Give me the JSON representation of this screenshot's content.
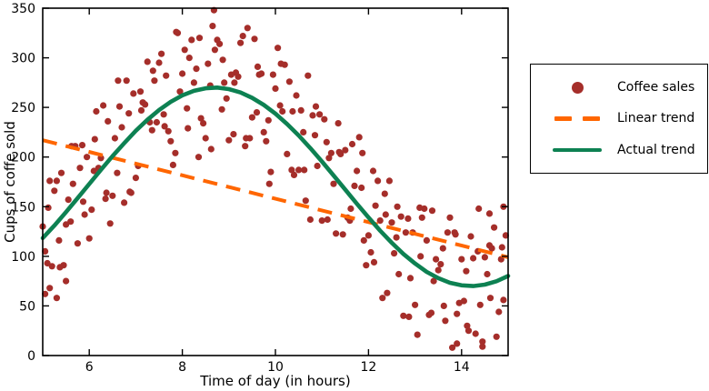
{
  "figure": {
    "background": "#ffffff"
  },
  "chart_data": {
    "type": "scatter",
    "title": "",
    "xlabel": "Time of day (in hours)",
    "ylabel": "Cups of coffe sold",
    "xlim": [
      5,
      15
    ],
    "ylim": [
      0,
      350
    ],
    "x_ticks": [
      "6",
      "8",
      "10",
      "12",
      "14"
    ],
    "y_ticks": [
      "0",
      "50",
      "100",
      "150",
      "200",
      "250",
      "300",
      "350"
    ],
    "grid": false,
    "tick_style": "inward-all-four-sides",
    "legend": {
      "position": "outside-right",
      "entries": [
        {
          "label": "Coffee sales",
          "type": "marker",
          "color": "#a52e2a"
        },
        {
          "label": "Linear trend",
          "type": "dashed-line",
          "color": "#ff6600"
        },
        {
          "label": "Actual trend",
          "type": "solid-line",
          "color": "#0d8152"
        }
      ]
    },
    "series": [
      {
        "name": "Coffee sales",
        "type": "scatter",
        "color": "#a52e2a",
        "points": [
          [
            5.0,
            130
          ],
          [
            5.2,
            90
          ],
          [
            5.4,
            184
          ],
          [
            5.6,
            135
          ],
          [
            5.8,
            189
          ],
          [
            6.0,
            118
          ],
          [
            6.2,
            189
          ],
          [
            6.4,
            236
          ],
          [
            6.6,
            184
          ],
          [
            6.8,
            277
          ],
          [
            7.0,
            179
          ],
          [
            7.2,
            253
          ],
          [
            7.4,
            277
          ],
          [
            7.6,
            243
          ],
          [
            7.8,
            192
          ],
          [
            8.0,
            284
          ],
          [
            8.2,
            318
          ],
          [
            8.4,
            239
          ],
          [
            8.6,
            272
          ],
          [
            8.8,
            314
          ],
          [
            9.0,
            217
          ],
          [
            9.2,
            281
          ],
          [
            9.4,
            330
          ],
          [
            9.6,
            245
          ],
          [
            9.8,
            216
          ],
          [
            10.0,
            269
          ],
          [
            10.2,
            293
          ],
          [
            10.4,
            182
          ],
          [
            10.6,
            225
          ],
          [
            10.8,
            242
          ],
          [
            11.0,
            136
          ],
          [
            11.2,
            204
          ],
          [
            11.4,
            203
          ],
          [
            11.6,
            136
          ],
          [
            11.8,
            220
          ],
          [
            12.0,
            121
          ],
          [
            12.2,
            176
          ],
          [
            12.4,
            63
          ],
          [
            12.6,
            119
          ],
          [
            12.8,
            124
          ],
          [
            13.0,
            51
          ],
          [
            13.2,
            148
          ],
          [
            13.4,
            75
          ],
          [
            13.6,
            108
          ],
          [
            13.8,
            8
          ],
          [
            14.0,
            97
          ],
          [
            14.2,
            120
          ],
          [
            14.4,
            51
          ],
          [
            14.6,
            111
          ],
          [
            14.8,
            44
          ],
          [
            5.1,
            93
          ],
          [
            5.3,
            176
          ],
          [
            5.5,
            132
          ],
          [
            5.7,
            211
          ],
          [
            5.9,
            142
          ],
          [
            6.1,
            186
          ],
          [
            6.3,
            252
          ],
          [
            6.5,
            161
          ],
          [
            6.7,
            230
          ],
          [
            6.9,
            164
          ],
          [
            7.1,
            266
          ],
          [
            7.3,
            235
          ],
          [
            7.5,
            295
          ],
          [
            7.7,
            226
          ],
          [
            7.9,
            325
          ],
          [
            8.1,
            249
          ],
          [
            8.3,
            289
          ],
          [
            8.5,
            219
          ],
          [
            8.7,
            308
          ],
          [
            8.9,
            275
          ],
          [
            9.1,
            223
          ],
          [
            9.3,
            322
          ],
          [
            9.5,
            240
          ],
          [
            9.7,
            284
          ],
          [
            9.9,
            185
          ],
          [
            10.1,
            252
          ],
          [
            10.3,
            276
          ],
          [
            10.5,
            187
          ],
          [
            10.7,
            282
          ],
          [
            10.9,
            191
          ],
          [
            11.1,
            215
          ],
          [
            11.3,
            123
          ],
          [
            11.5,
            207
          ],
          [
            11.7,
            171
          ],
          [
            11.9,
            116
          ],
          [
            12.1,
            186
          ],
          [
            12.3,
            58
          ],
          [
            12.5,
            134
          ],
          [
            12.7,
            140
          ],
          [
            12.9,
            78
          ],
          [
            13.1,
            149
          ],
          [
            13.3,
            41
          ],
          [
            13.5,
            86
          ],
          [
            13.7,
            124
          ],
          [
            13.9,
            42
          ],
          [
            14.1,
            85
          ],
          [
            14.3,
            22
          ],
          [
            14.5,
            99
          ],
          [
            14.7,
            129
          ],
          [
            14.9,
            56
          ],
          [
            5.15,
            176
          ],
          [
            5.35,
            116
          ],
          [
            5.55,
            157
          ],
          [
            5.75,
            113
          ],
          [
            5.95,
            200
          ],
          [
            6.15,
            246
          ],
          [
            6.35,
            158
          ],
          [
            6.55,
            219
          ],
          [
            6.75,
            154
          ],
          [
            6.95,
            264
          ],
          [
            7.15,
            255
          ],
          [
            7.35,
            227
          ],
          [
            7.55,
            304
          ],
          [
            7.75,
            216
          ],
          [
            7.95,
            266
          ],
          [
            8.15,
            300
          ],
          [
            8.35,
            200
          ],
          [
            8.55,
            294
          ],
          [
            8.75,
            318
          ],
          [
            8.95,
            259
          ],
          [
            9.15,
            285
          ],
          [
            9.35,
            211
          ],
          [
            9.55,
            319
          ],
          [
            9.75,
            225
          ],
          [
            9.95,
            283
          ],
          [
            10.15,
            246
          ],
          [
            10.35,
            187
          ],
          [
            10.55,
            247
          ],
          [
            10.75,
            137
          ],
          [
            10.95,
            243
          ],
          [
            11.15,
            199
          ],
          [
            11.35,
            234
          ],
          [
            11.55,
            139
          ],
          [
            11.75,
            186
          ],
          [
            11.95,
            91
          ],
          [
            12.15,
            151
          ],
          [
            12.35,
            163
          ],
          [
            12.55,
            103
          ],
          [
            12.75,
            40
          ],
          [
            12.95,
            124
          ],
          [
            13.15,
            139
          ],
          [
            13.35,
            43
          ],
          [
            13.55,
            92
          ],
          [
            13.75,
            139
          ],
          [
            13.95,
            53
          ],
          [
            14.15,
            25
          ],
          [
            14.35,
            105
          ],
          [
            14.55,
            82
          ],
          [
            14.75,
            19
          ],
          [
            14.95,
            121
          ],
          [
            5.05,
            105
          ],
          [
            5.25,
            166
          ],
          [
            5.45,
            91
          ],
          [
            5.65,
            173
          ],
          [
            5.85,
            212
          ],
          [
            6.05,
            147
          ],
          [
            6.25,
            199
          ],
          [
            6.45,
            133
          ],
          [
            6.65,
            251
          ],
          [
            6.85,
            244
          ],
          [
            7.05,
            191
          ],
          [
            7.25,
            296
          ],
          [
            7.45,
            235
          ],
          [
            7.65,
            282
          ],
          [
            7.85,
            204
          ],
          [
            8.05,
            308
          ],
          [
            8.25,
            275
          ],
          [
            8.45,
            234
          ],
          [
            8.65,
            332
          ],
          [
            8.85,
            248
          ],
          [
            9.05,
            283
          ],
          [
            9.25,
            315
          ],
          [
            9.45,
            219
          ],
          [
            9.65,
            283
          ],
          [
            9.85,
            237
          ],
          [
            10.05,
            310
          ],
          [
            10.25,
            203
          ],
          [
            10.45,
            262
          ],
          [
            10.65,
            156
          ],
          [
            10.85,
            222
          ],
          [
            11.05,
            238
          ],
          [
            11.25,
            173
          ],
          [
            11.45,
            122
          ],
          [
            11.65,
            213
          ],
          [
            11.85,
            169
          ],
          [
            12.05,
            104
          ],
          [
            12.25,
            136
          ],
          [
            12.45,
            176
          ],
          [
            12.65,
            82
          ],
          [
            12.85,
            138
          ],
          [
            13.05,
            21
          ],
          [
            13.25,
            116
          ],
          [
            13.45,
            97
          ],
          [
            13.65,
            35
          ],
          [
            13.85,
            124
          ],
          [
            14.05,
            55
          ],
          [
            14.25,
            98
          ],
          [
            14.45,
            9
          ],
          [
            14.65,
            108
          ],
          [
            14.85,
            97
          ],
          [
            5.12,
            149
          ],
          [
            5.37,
            89
          ],
          [
            5.62,
            211
          ],
          [
            5.87,
            155
          ],
          [
            6.12,
            218
          ],
          [
            6.37,
            164
          ],
          [
            6.62,
            277
          ],
          [
            6.87,
            165
          ],
          [
            7.12,
            247
          ],
          [
            7.37,
            287
          ],
          [
            7.62,
            231
          ],
          [
            7.87,
            326
          ],
          [
            8.12,
            229
          ],
          [
            8.37,
            320
          ],
          [
            8.62,
            208
          ],
          [
            8.87,
            298
          ],
          [
            9.12,
            275
          ],
          [
            9.37,
            219
          ],
          [
            9.62,
            291
          ],
          [
            9.87,
            173
          ],
          [
            10.12,
            294
          ],
          [
            10.37,
            246
          ],
          [
            10.62,
            187
          ],
          [
            10.87,
            251
          ],
          [
            11.12,
            137
          ],
          [
            11.37,
            205
          ],
          [
            11.62,
            148
          ],
          [
            11.87,
            204
          ],
          [
            12.12,
            94
          ],
          [
            12.37,
            142
          ],
          [
            12.62,
            150
          ],
          [
            12.87,
            39
          ],
          [
            13.12,
            100
          ],
          [
            13.37,
            146
          ],
          [
            13.62,
            50
          ],
          [
            13.87,
            122
          ],
          [
            14.12,
            30
          ],
          [
            14.37,
            148
          ],
          [
            14.62,
            58
          ],
          [
            14.87,
            109
          ],
          [
            8.68,
            348
          ],
          [
            5.05,
            62
          ],
          [
            5.3,
            58
          ],
          [
            5.5,
            75
          ],
          [
            5.15,
            68
          ],
          [
            13.9,
            12
          ],
          [
            14.45,
            14
          ],
          [
            14.9,
            150
          ],
          [
            14.6,
            143
          ]
        ]
      },
      {
        "name": "Linear trend",
        "type": "line",
        "style": "dashed",
        "color": "#ff6600",
        "points": [
          [
            5,
            217
          ],
          [
            15,
            99
          ]
        ]
      },
      {
        "name": "Actual trend",
        "type": "line",
        "style": "solid",
        "color": "#0d8152",
        "points": [
          [
            5,
            118.4
          ],
          [
            5.25,
            130.9
          ],
          [
            5.5,
            144.5
          ],
          [
            5.75,
            158.6
          ],
          [
            6,
            172.9
          ],
          [
            6.25,
            187.1
          ],
          [
            6.5,
            200.9
          ],
          [
            6.75,
            213.9
          ],
          [
            7,
            226.5
          ],
          [
            7.25,
            237.6
          ],
          [
            7.5,
            247.4
          ],
          [
            7.75,
            255.6
          ],
          [
            8,
            262.1
          ],
          [
            8.25,
            266.7
          ],
          [
            8.5,
            269.3
          ],
          [
            8.75,
            270
          ],
          [
            9,
            268.5
          ],
          [
            9.25,
            265.1
          ],
          [
            9.5,
            259.7
          ],
          [
            9.75,
            252.5
          ],
          [
            10,
            243.7
          ],
          [
            10.25,
            233.3
          ],
          [
            10.5,
            221.7
          ],
          [
            10.75,
            209
          ],
          [
            11,
            195.5
          ],
          [
            11.25,
            181.4
          ],
          [
            11.5,
            167.2
          ],
          [
            11.75,
            152.9
          ],
          [
            12,
            139.2
          ],
          [
            12.25,
            125.8
          ],
          [
            12.5,
            113.6
          ],
          [
            12.75,
            102.3
          ],
          [
            13,
            92.7
          ],
          [
            13.25,
            84.3
          ],
          [
            13.5,
            78
          ],
          [
            13.75,
            73.3
          ],
          [
            14,
            70.7
          ],
          [
            14.25,
            70
          ],
          [
            14.5,
            71.5
          ],
          [
            14.75,
            74.9
          ],
          [
            15,
            80.2
          ]
        ]
      }
    ]
  }
}
